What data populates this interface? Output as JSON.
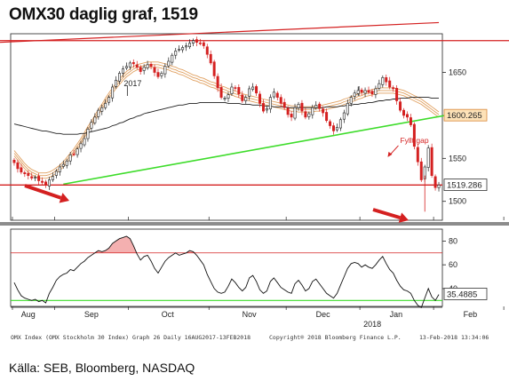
{
  "title": "OMX30 daglig graf, 1519",
  "source": "Källa: SEB, Bloomberg, NASDAQ",
  "footer": {
    "left": "OMX Index (OMX Stockholm 30 Index) Graph 26  Daily 16AUG2017-13FEB2018",
    "center": "Copyright® 2018 Bloomberg Finance L.P.",
    "right": "13-Feb-2018 13:34:06"
  },
  "colors": {
    "up": "#1f1f1f",
    "down": "#d42020",
    "resistance": "#d42020",
    "trend": "#3ddc2a",
    "ma_band": "#e0a060",
    "ma_long": "#1f1f1f",
    "rsi_line": "#111111",
    "rsi_overbought_fill": "#f4b0b0",
    "rsi_oversold_line": "#3ddc2a",
    "rsi_upper_line": "#d42020"
  },
  "chart_data": [
    {
      "type": "candlestick",
      "y_ticks": [
        1500,
        1550,
        1600,
        1650
      ],
      "ylim": [
        1478,
        1695
      ],
      "x_labels": [
        "Aug",
        "Sep",
        "Oct",
        "Nov",
        "Dec",
        "Jan",
        "Feb"
      ],
      "year_labels": [
        "2017",
        "2018"
      ],
      "x_tick_positions": [
        0,
        12,
        33,
        56,
        78,
        99,
        120,
        140
      ],
      "price_labels": [
        {
          "text": "1600.265",
          "value": 1600.265,
          "style": "orange"
        },
        {
          "text": "1519.286",
          "value": 1519.286,
          "style": "plain"
        }
      ],
      "annotations": [
        {
          "text": "Fyllt gap",
          "index": 112,
          "value": 1568
        }
      ],
      "horizontal_line": 1519,
      "resistance_lines": [
        {
          "from": [
            -8,
            1687
          ],
          "to": [
            144,
            1687
          ]
        },
        {
          "from": [
            -8,
            1685
          ],
          "to": [
            121,
            1708
          ]
        }
      ],
      "support_line": {
        "from": [
          14,
          1520
        ],
        "to": [
          131,
          1606
        ]
      },
      "closes": [
        1545,
        1538,
        1534,
        1532,
        1530,
        1527,
        1528,
        1524,
        1522,
        1519,
        1525,
        1529,
        1535,
        1540,
        1543,
        1547,
        1554,
        1555,
        1561,
        1567,
        1573,
        1584,
        1592,
        1598,
        1606,
        1609,
        1614,
        1621,
        1633,
        1641,
        1649,
        1654,
        1657,
        1661,
        1660,
        1656,
        1651,
        1656,
        1659,
        1657,
        1650,
        1645,
        1649,
        1657,
        1663,
        1670,
        1675,
        1677,
        1679,
        1681,
        1684,
        1687,
        1685,
        1684,
        1681,
        1671,
        1661,
        1646,
        1632,
        1621,
        1620,
        1624,
        1633,
        1632,
        1625,
        1617,
        1621,
        1631,
        1633,
        1626,
        1614,
        1605,
        1608,
        1621,
        1627,
        1621,
        1614,
        1609,
        1601,
        1598,
        1609,
        1613,
        1605,
        1598,
        1602,
        1609,
        1612,
        1608,
        1603,
        1594,
        1588,
        1582,
        1586,
        1595,
        1603,
        1614,
        1621,
        1626,
        1629,
        1627,
        1629,
        1627,
        1625,
        1631,
        1637,
        1644,
        1639,
        1633,
        1631,
        1617,
        1606,
        1600,
        1598,
        1589,
        1564,
        1546,
        1525,
        1540,
        1562,
        1530,
        1516,
        1519
      ],
      "ma_long": [
        1590,
        1589,
        1588,
        1587,
        1586,
        1585,
        1584,
        1583,
        1582,
        1582,
        1581,
        1580,
        1579,
        1579,
        1578,
        1578,
        1578,
        1578,
        1578,
        1579,
        1579,
        1580,
        1581,
        1582,
        1583,
        1584,
        1585,
        1586,
        1588,
        1589,
        1591,
        1592,
        1594,
        1596,
        1597,
        1599,
        1600,
        1602,
        1603,
        1604,
        1605,
        1606,
        1607,
        1608,
        1609,
        1610,
        1611,
        1612,
        1612,
        1613,
        1614,
        1614,
        1614,
        1615,
        1615,
        1615,
        1615,
        1615,
        1615,
        1615,
        1615,
        1614,
        1614,
        1614,
        1614,
        1613,
        1613,
        1613,
        1612,
        1612,
        1612,
        1611,
        1611,
        1611,
        1610,
        1610,
        1610,
        1610,
        1609,
        1609,
        1609,
        1609,
        1609,
        1609,
        1609,
        1609,
        1609,
        1609,
        1609,
        1610,
        1610,
        1610,
        1610,
        1611,
        1611,
        1612,
        1612,
        1613,
        1613,
        1614,
        1614,
        1615,
        1615,
        1616,
        1617,
        1617,
        1618,
        1618,
        1619,
        1619,
        1620,
        1620,
        1620,
        1621,
        1621,
        1621,
        1621,
        1621,
        1621,
        1620,
        1620,
        1620
      ],
      "ma_mid": [
        1556,
        1551,
        1546,
        1541,
        1537,
        1534,
        1532,
        1530,
        1530,
        1530,
        1531,
        1533,
        1536,
        1539,
        1543,
        1548,
        1553,
        1558,
        1564,
        1570,
        1577,
        1584,
        1590,
        1597,
        1604,
        1610,
        1617,
        1623,
        1629,
        1634,
        1639,
        1644,
        1648,
        1651,
        1654,
        1656,
        1657,
        1658,
        1659,
        1659,
        1659,
        1659,
        1658,
        1657,
        1656,
        1654,
        1653,
        1651,
        1650,
        1648,
        1646,
        1644,
        1643,
        1641,
        1640,
        1638,
        1636,
        1635,
        1633,
        1631,
        1630,
        1628,
        1627,
        1625,
        1624,
        1622,
        1621,
        1620,
        1619,
        1618,
        1617,
        1616,
        1615,
        1614,
        1613,
        1612,
        1611,
        1610,
        1609,
        1608,
        1608,
        1607,
        1607,
        1607,
        1607,
        1607,
        1608,
        1608,
        1609,
        1610,
        1611,
        1612,
        1613,
        1614,
        1616,
        1617,
        1619,
        1620,
        1622,
        1623,
        1625,
        1626,
        1627,
        1628,
        1629,
        1629,
        1629,
        1629,
        1629,
        1628,
        1627,
        1626,
        1624,
        1622,
        1620,
        1618,
        1616,
        1613,
        1610,
        1607,
        1604,
        1601
      ],
      "rsi": {
        "yticks": [
          40,
          60,
          80
        ],
        "ylim": [
          25,
          90
        ],
        "upper_line": 70,
        "lower_line": 30,
        "label": {
          "text": "35.4885",
          "value": 35.4885
        },
        "values": [
          45,
          39,
          34,
          32,
          31,
          30,
          31,
          29,
          30,
          28,
          36,
          41,
          47,
          50,
          52,
          53,
          56,
          55,
          58,
          61,
          63,
          66,
          68,
          70,
          72,
          71,
          72,
          74,
          78,
          80,
          82,
          83,
          84,
          82,
          76,
          69,
          64,
          67,
          68,
          63,
          57,
          53,
          58,
          63,
          66,
          68,
          70,
          68,
          69,
          70,
          72,
          71,
          68,
          64,
          60,
          52,
          46,
          40,
          37,
          36,
          37,
          42,
          48,
          45,
          41,
          38,
          41,
          49,
          51,
          46,
          39,
          36,
          38,
          46,
          49,
          45,
          41,
          39,
          37,
          36,
          44,
          47,
          43,
          38,
          40,
          46,
          48,
          44,
          40,
          36,
          34,
          32,
          36,
          43,
          50,
          57,
          61,
          62,
          61,
          58,
          60,
          58,
          57,
          60,
          64,
          67,
          61,
          56,
          53,
          47,
          42,
          39,
          38,
          36,
          30,
          26,
          24,
          32,
          40,
          33,
          30,
          35
        ]
      }
    }
  ]
}
